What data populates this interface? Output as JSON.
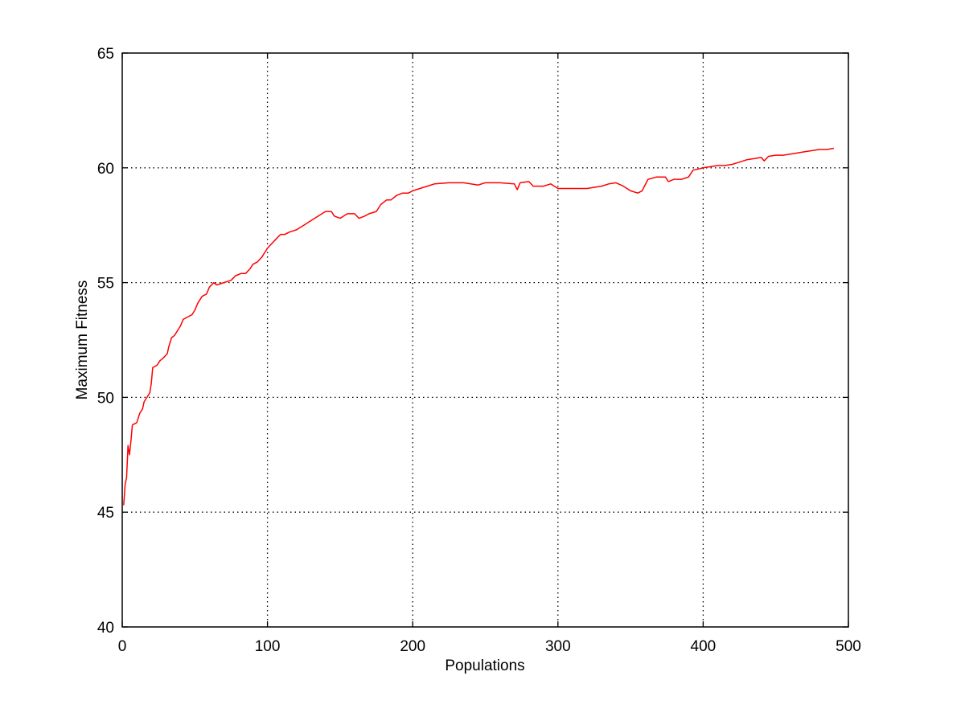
{
  "chart_data": {
    "type": "line",
    "xlabel": "Populations",
    "ylabel": "Maximum Fitness",
    "xlim": [
      0,
      500
    ],
    "ylim": [
      40,
      65
    ],
    "xticks": [
      0,
      100,
      200,
      300,
      400,
      500
    ],
    "yticks": [
      40,
      45,
      50,
      55,
      60,
      65
    ],
    "grid": true,
    "series": [
      {
        "color": "#ff0000",
        "points": [
          [
            1,
            45.3
          ],
          [
            2,
            46.2
          ],
          [
            3,
            46.5
          ],
          [
            4,
            47.9
          ],
          [
            5,
            47.5
          ],
          [
            6,
            48.1
          ],
          [
            7,
            48.8
          ],
          [
            10,
            48.9
          ],
          [
            12,
            49.3
          ],
          [
            14,
            49.5
          ],
          [
            15,
            49.8
          ],
          [
            17,
            50.0
          ],
          [
            19,
            50.2
          ],
          [
            20,
            50.6
          ],
          [
            21,
            51.3
          ],
          [
            24,
            51.4
          ],
          [
            26,
            51.6
          ],
          [
            28,
            51.7
          ],
          [
            31,
            51.9
          ],
          [
            32,
            52.2
          ],
          [
            34,
            52.6
          ],
          [
            36,
            52.7
          ],
          [
            38,
            52.9
          ],
          [
            40,
            53.1
          ],
          [
            42,
            53.4
          ],
          [
            45,
            53.5
          ],
          [
            48,
            53.6
          ],
          [
            50,
            53.8
          ],
          [
            52,
            54.1
          ],
          [
            55,
            54.4
          ],
          [
            58,
            54.5
          ],
          [
            60,
            54.8
          ],
          [
            63,
            55.0
          ],
          [
            65,
            54.9
          ],
          [
            70,
            55.0
          ],
          [
            75,
            55.1
          ],
          [
            78,
            55.3
          ],
          [
            82,
            55.4
          ],
          [
            85,
            55.4
          ],
          [
            88,
            55.6
          ],
          [
            90,
            55.8
          ],
          [
            93,
            55.9
          ],
          [
            96,
            56.1
          ],
          [
            98,
            56.3
          ],
          [
            100,
            56.5
          ],
          [
            103,
            56.7
          ],
          [
            106,
            56.9
          ],
          [
            109,
            57.1
          ],
          [
            112,
            57.1
          ],
          [
            115,
            57.2
          ],
          [
            120,
            57.3
          ],
          [
            125,
            57.5
          ],
          [
            130,
            57.7
          ],
          [
            135,
            57.9
          ],
          [
            140,
            58.1
          ],
          [
            144,
            58.1
          ],
          [
            146,
            57.9
          ],
          [
            150,
            57.8
          ],
          [
            155,
            58.0
          ],
          [
            160,
            58.0
          ],
          [
            163,
            57.8
          ],
          [
            167,
            57.9
          ],
          [
            170,
            58.0
          ],
          [
            175,
            58.1
          ],
          [
            178,
            58.4
          ],
          [
            182,
            58.6
          ],
          [
            185,
            58.6
          ],
          [
            189,
            58.8
          ],
          [
            193,
            58.9
          ],
          [
            197,
            58.9
          ],
          [
            200,
            59.0
          ],
          [
            205,
            59.1
          ],
          [
            210,
            59.2
          ],
          [
            215,
            59.3
          ],
          [
            225,
            59.35
          ],
          [
            235,
            59.35
          ],
          [
            240,
            59.3
          ],
          [
            245,
            59.25
          ],
          [
            250,
            59.35
          ],
          [
            260,
            59.35
          ],
          [
            270,
            59.3
          ],
          [
            272,
            59.05
          ],
          [
            274,
            59.35
          ],
          [
            280,
            59.4
          ],
          [
            283,
            59.2
          ],
          [
            290,
            59.2
          ],
          [
            295,
            59.3
          ],
          [
            300,
            59.1
          ],
          [
            310,
            59.1
          ],
          [
            320,
            59.1
          ],
          [
            330,
            59.2
          ],
          [
            335,
            59.3
          ],
          [
            340,
            59.35
          ],
          [
            345,
            59.2
          ],
          [
            350,
            59.0
          ],
          [
            355,
            58.9
          ],
          [
            358,
            59.0
          ],
          [
            362,
            59.5
          ],
          [
            368,
            59.6
          ],
          [
            374,
            59.6
          ],
          [
            376,
            59.4
          ],
          [
            380,
            59.5
          ],
          [
            385,
            59.5
          ],
          [
            390,
            59.6
          ],
          [
            393,
            59.9
          ],
          [
            397,
            59.95
          ],
          [
            400,
            60.0
          ],
          [
            405,
            60.05
          ],
          [
            410,
            60.1
          ],
          [
            415,
            60.1
          ],
          [
            420,
            60.15
          ],
          [
            425,
            60.25
          ],
          [
            430,
            60.35
          ],
          [
            435,
            60.4
          ],
          [
            440,
            60.45
          ],
          [
            442,
            60.3
          ],
          [
            445,
            60.5
          ],
          [
            450,
            60.55
          ],
          [
            455,
            60.55
          ],
          [
            460,
            60.6
          ],
          [
            465,
            60.65
          ],
          [
            470,
            60.7
          ],
          [
            475,
            60.75
          ],
          [
            480,
            60.8
          ],
          [
            485,
            60.8
          ],
          [
            490,
            60.85
          ]
        ]
      }
    ]
  }
}
